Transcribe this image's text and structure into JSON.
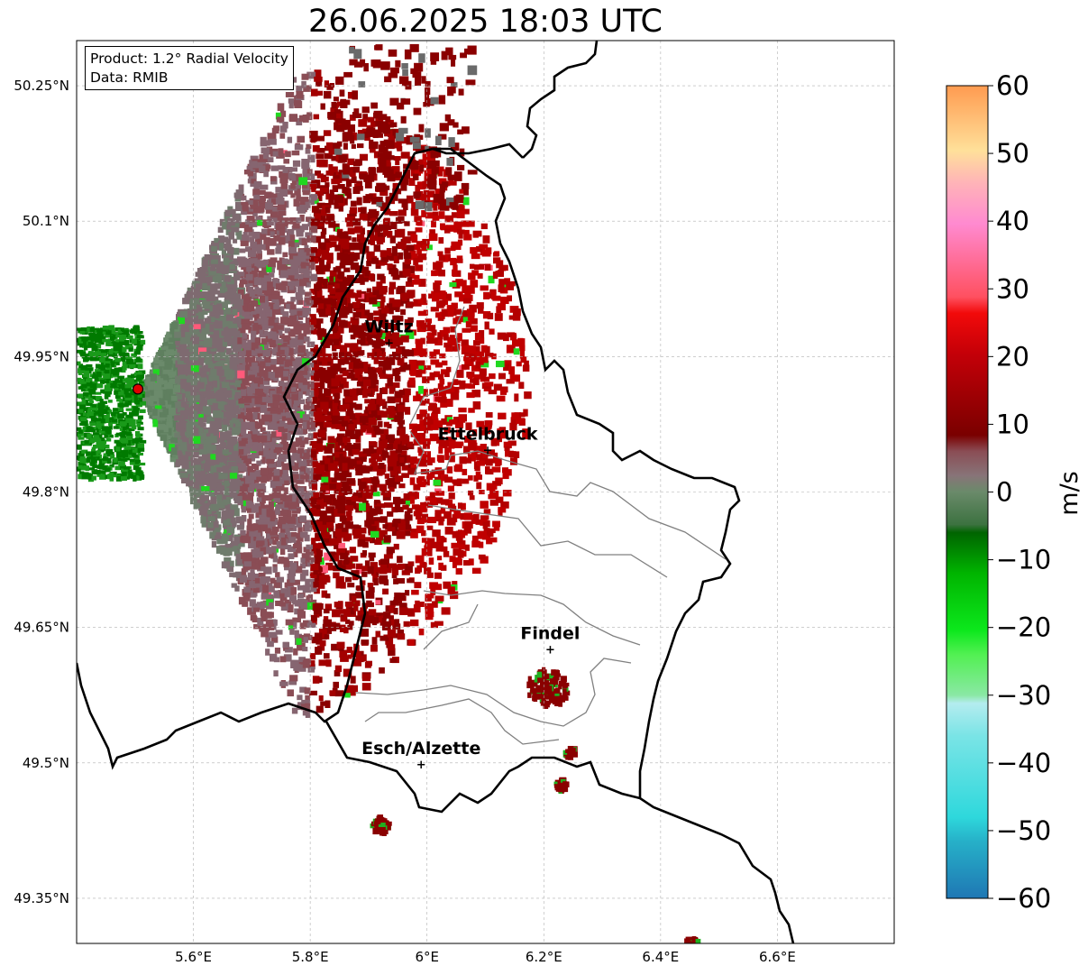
{
  "title": "26.06.2025 18:03 UTC",
  "info": {
    "product": "Product: 1.2° Radial Velocity",
    "data": "Data: RMIB"
  },
  "map": {
    "lon_range": [
      5.4,
      6.8
    ],
    "lat_range": [
      49.3,
      50.3
    ],
    "radar_site": {
      "lon": 5.505,
      "lat": 49.914
    },
    "x_ticks": [
      {
        "value": 5.6,
        "label": "5.6°E"
      },
      {
        "value": 5.8,
        "label": "5.8°E"
      },
      {
        "value": 6.0,
        "label": "6°E"
      },
      {
        "value": 6.2,
        "label": "6.2°E"
      },
      {
        "value": 6.4,
        "label": "6.4°E"
      },
      {
        "value": 6.6,
        "label": "6.6°E"
      }
    ],
    "y_ticks": [
      {
        "value": 50.25,
        "label": "50.25°N"
      },
      {
        "value": 50.1,
        "label": "50.1°N"
      },
      {
        "value": 49.95,
        "label": "49.95°N"
      },
      {
        "value": 49.8,
        "label": "49.8°N"
      },
      {
        "value": 49.65,
        "label": "49.65°N"
      },
      {
        "value": 49.5,
        "label": "49.5°N"
      },
      {
        "value": 49.35,
        "label": "49.35°N"
      }
    ],
    "cities": [
      {
        "name": "Wiltz",
        "lon": 5.935,
        "lat": 49.966
      },
      {
        "name": "Ettelbruck",
        "lon": 6.104,
        "lat": 49.847
      },
      {
        "name": "Findel",
        "lon": 6.211,
        "lat": 49.626
      },
      {
        "name": "Esch/Alzette",
        "lon": 5.99,
        "lat": 49.499
      }
    ],
    "grid": true
  },
  "colorbar": {
    "label": "m/s",
    "min": -60,
    "max": 60,
    "ticks": [
      {
        "value": 60,
        "label": "60"
      },
      {
        "value": 50,
        "label": "50"
      },
      {
        "value": 40,
        "label": "40"
      },
      {
        "value": 30,
        "label": "30"
      },
      {
        "value": 20,
        "label": "20"
      },
      {
        "value": 10,
        "label": "10"
      },
      {
        "value": 0,
        "label": "0"
      },
      {
        "value": -10,
        "label": "−10"
      },
      {
        "value": -20,
        "label": "−20"
      },
      {
        "value": -30,
        "label": "−30"
      },
      {
        "value": -40,
        "label": "−40"
      },
      {
        "value": -50,
        "label": "−50"
      },
      {
        "value": -60,
        "label": "−60"
      }
    ]
  }
}
